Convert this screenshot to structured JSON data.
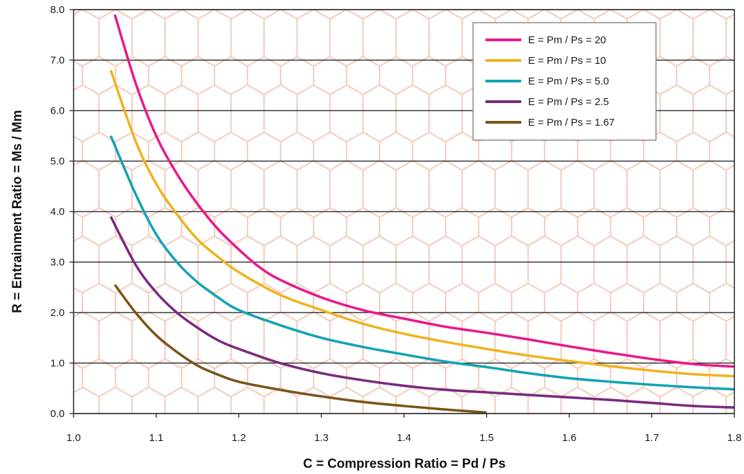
{
  "chart_data": {
    "type": "line",
    "title": "",
    "xlabel": "C = Compression Ratio = Pd / Ps",
    "ylabel": "R = Entrainment Ratio = Ms / Mm",
    "xlim": [
      1.0,
      1.8
    ],
    "ylim": [
      0.0,
      8.0
    ],
    "x_ticks": [
      "1.0",
      "1.1",
      "1.2",
      "1.3",
      "1.4",
      "1.5",
      "1.6",
      "1.7",
      "1.8"
    ],
    "y_ticks": [
      "0.0",
      "1.0",
      "2.0",
      "3.0",
      "4.0",
      "5.0",
      "6.0",
      "7.0",
      "8.0"
    ],
    "grid": "horizontal",
    "background_pattern": "hexagon",
    "legend_position": "top-right",
    "series": [
      {
        "name": "E = Pm / Ps = 20",
        "color": "#e8198b",
        "x": [
          1.05,
          1.075,
          1.1,
          1.125,
          1.15,
          1.175,
          1.2,
          1.225,
          1.25,
          1.3,
          1.35,
          1.4,
          1.45,
          1.5,
          1.55,
          1.6,
          1.65,
          1.7,
          1.75,
          1.8
        ],
        "y": [
          7.9,
          6.55,
          5.5,
          4.75,
          4.15,
          3.65,
          3.25,
          2.9,
          2.65,
          2.3,
          2.05,
          1.88,
          1.72,
          1.6,
          1.47,
          1.33,
          1.2,
          1.08,
          0.98,
          0.93
        ]
      },
      {
        "name": "E = Pm / Ps = 10",
        "color": "#f0b21e",
        "x": [
          1.045,
          1.075,
          1.1,
          1.125,
          1.15,
          1.175,
          1.2,
          1.25,
          1.3,
          1.35,
          1.4,
          1.45,
          1.5,
          1.55,
          1.6,
          1.65,
          1.7,
          1.75,
          1.8
        ],
        "y": [
          6.8,
          5.4,
          4.55,
          3.95,
          3.45,
          3.1,
          2.8,
          2.35,
          2.05,
          1.78,
          1.58,
          1.42,
          1.28,
          1.15,
          1.04,
          0.94,
          0.85,
          0.78,
          0.74
        ]
      },
      {
        "name": "E = Pm / Ps = 5.0",
        "color": "#12a3b5",
        "x": [
          1.045,
          1.075,
          1.1,
          1.125,
          1.15,
          1.175,
          1.2,
          1.25,
          1.3,
          1.35,
          1.4,
          1.45,
          1.5,
          1.55,
          1.6,
          1.65,
          1.7,
          1.75,
          1.8
        ],
        "y": [
          5.5,
          4.35,
          3.55,
          3.0,
          2.6,
          2.3,
          2.05,
          1.75,
          1.5,
          1.32,
          1.17,
          1.03,
          0.92,
          0.8,
          0.7,
          0.63,
          0.57,
          0.52,
          0.48
        ]
      },
      {
        "name": "E = Pm / Ps = 2.5",
        "color": "#7a2a7e",
        "x": [
          1.045,
          1.075,
          1.1,
          1.125,
          1.15,
          1.175,
          1.2,
          1.25,
          1.3,
          1.35,
          1.4,
          1.45,
          1.5,
          1.55,
          1.6,
          1.65,
          1.7,
          1.75,
          1.8
        ],
        "y": [
          3.9,
          2.95,
          2.4,
          2.0,
          1.7,
          1.45,
          1.28,
          1.0,
          0.8,
          0.66,
          0.55,
          0.47,
          0.42,
          0.37,
          0.32,
          0.27,
          0.21,
          0.15,
          0.12
        ]
      },
      {
        "name": "E = Pm / Ps = 1.67",
        "color": "#7a5418",
        "x": [
          1.05,
          1.075,
          1.1,
          1.125,
          1.15,
          1.175,
          1.2,
          1.25,
          1.3,
          1.35,
          1.4,
          1.45,
          1.5
        ],
        "y": [
          2.55,
          2.0,
          1.55,
          1.22,
          0.95,
          0.77,
          0.63,
          0.47,
          0.34,
          0.23,
          0.15,
          0.08,
          0.02
        ]
      }
    ]
  }
}
